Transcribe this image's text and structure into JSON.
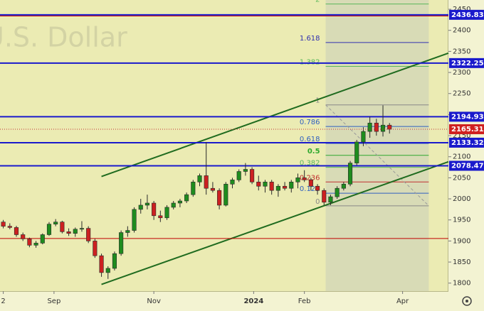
{
  "chart_data": {
    "type": "candlestick",
    "watermark": "U.S. Dollar",
    "x": [
      0,
      4,
      8,
      12,
      16,
      20,
      24,
      28,
      32,
      36,
      40,
      44,
      48,
      52,
      56,
      60,
      64,
      68,
      72,
      76,
      80,
      84,
      88,
      92,
      96,
      100,
      104,
      108,
      112,
      116,
      120,
      124,
      128,
      132,
      136,
      140,
      144,
      148,
      152,
      156,
      160,
      164,
      168,
      172,
      176,
      180,
      184,
      188,
      192,
      196,
      200,
      204,
      208,
      212,
      216,
      220,
      224,
      228,
      232,
      236
    ],
    "ohlc": [
      [
        1945,
        1950,
        1930,
        1935
      ],
      [
        1935,
        1942,
        1928,
        1932
      ],
      [
        1932,
        1936,
        1910,
        1915
      ],
      [
        1915,
        1920,
        1900,
        1905
      ],
      [
        1905,
        1908,
        1885,
        1890
      ],
      [
        1890,
        1900,
        1884,
        1895
      ],
      [
        1895,
        1918,
        1892,
        1915
      ],
      [
        1915,
        1945,
        1912,
        1940
      ],
      [
        1940,
        1952,
        1935,
        1945
      ],
      [
        1945,
        1948,
        1918,
        1922
      ],
      [
        1922,
        1930,
        1912,
        1918
      ],
      [
        1918,
        1932,
        1910,
        1928
      ],
      [
        1928,
        1947,
        1922,
        1930
      ],
      [
        1930,
        1935,
        1895,
        1900
      ],
      [
        1900,
        1905,
        1860,
        1865
      ],
      [
        1865,
        1870,
        1815,
        1825
      ],
      [
        1825,
        1840,
        1810,
        1835
      ],
      [
        1835,
        1875,
        1830,
        1870
      ],
      [
        1870,
        1925,
        1865,
        1920
      ],
      [
        1920,
        1935,
        1910,
        1925
      ],
      [
        1925,
        1980,
        1920,
        1975
      ],
      [
        1975,
        2000,
        1965,
        1985
      ],
      [
        1985,
        2010,
        1975,
        1990
      ],
      [
        1990,
        1995,
        1950,
        1960
      ],
      [
        1960,
        1972,
        1945,
        1955
      ],
      [
        1955,
        1985,
        1950,
        1980
      ],
      [
        1980,
        1995,
        1975,
        1990
      ],
      [
        1990,
        2000,
        1980,
        1995
      ],
      [
        1995,
        2015,
        1990,
        2010
      ],
      [
        2010,
        2045,
        2005,
        2040
      ],
      [
        2040,
        2060,
        2030,
        2055
      ],
      [
        2055,
        2135,
        2010,
        2025
      ],
      [
        2025,
        2040,
        2015,
        2020
      ],
      [
        2020,
        2025,
        1975,
        1985
      ],
      [
        1985,
        2040,
        1982,
        2035
      ],
      [
        2035,
        2050,
        2025,
        2045
      ],
      [
        2045,
        2070,
        2040,
        2065
      ],
      [
        2065,
        2085,
        2055,
        2070
      ],
      [
        2070,
        2075,
        2035,
        2040
      ],
      [
        2040,
        2055,
        2020,
        2030
      ],
      [
        2030,
        2045,
        2015,
        2040
      ],
      [
        2040,
        2045,
        2010,
        2020
      ],
      [
        2020,
        2035,
        2005,
        2030
      ],
      [
        2030,
        2040,
        2020,
        2025
      ],
      [
        2025,
        2045,
        2015,
        2040
      ],
      [
        2040,
        2060,
        2025,
        2050
      ],
      [
        2050,
        2068,
        2040,
        2045
      ],
      [
        2045,
        2050,
        2020,
        2030
      ],
      [
        2030,
        2035,
        2010,
        2020
      ],
      [
        2020,
        2025,
        1985,
        1992
      ],
      [
        1992,
        2010,
        1985,
        2005
      ],
      [
        2005,
        2030,
        2000,
        2025
      ],
      [
        2025,
        2040,
        2020,
        2035
      ],
      [
        2035,
        2090,
        2030,
        2085
      ],
      [
        2085,
        2140,
        2080,
        2135
      ],
      [
        2135,
        2170,
        2125,
        2160
      ],
      [
        2160,
        2195,
        2145,
        2180
      ],
      [
        2180,
        2190,
        2150,
        2160
      ],
      [
        2160,
        2222,
        2148,
        2175
      ],
      [
        2175,
        2180,
        2155,
        2165.31
      ]
    ],
    "up_color": "#1e8c1e",
    "down_color": "#cc2020",
    "xlim": [
      -2,
      272
    ],
    "xticks": [
      {
        "value": 0,
        "label": "2"
      },
      {
        "value": 31,
        "label": "Sep"
      },
      {
        "value": 92,
        "label": "Nov"
      },
      {
        "value": 153,
        "label": "2024"
      },
      {
        "value": 184,
        "label": "Feb"
      },
      {
        "value": 244,
        "label": "Apr"
      }
    ],
    "ylim": [
      1781,
      2472
    ],
    "yticks": [
      1800,
      1850,
      1900,
      1950,
      2000,
      2050,
      2100,
      2150,
      2200,
      2250,
      2300,
      2350,
      2400,
      2450
    ],
    "price_levels": [
      {
        "value": 2436.83,
        "color": "#1a1acc",
        "labeled": true
      },
      {
        "value": 2434,
        "color": "#c00000",
        "labeled": false
      },
      {
        "value": 2322.25,
        "color": "#1a1acc",
        "labeled": true
      },
      {
        "value": 2194.93,
        "color": "#1a1acc",
        "labeled": true
      },
      {
        "value": 2133.32,
        "color": "#1a1acc",
        "labeled": true
      },
      {
        "value": 2078.47,
        "color": "#1a1acc",
        "labeled": true
      },
      {
        "value": 1906,
        "color": "#c00000",
        "labeled": false
      }
    ],
    "trend_lines": [
      {
        "color": "#1f6b1f",
        "points": [
          [
            60,
            2053
          ],
          [
            272,
            2346
          ]
        ]
      },
      {
        "color": "#1f6b1f",
        "points": [
          [
            60,
            1797
          ],
          [
            272,
            2088
          ]
        ]
      }
    ],
    "fib": {
      "low": 1983.5,
      "high": 2223,
      "x0": 197,
      "x1": 260,
      "levels": [
        {
          "value": 2,
          "color": "#5ab85a"
        },
        {
          "value": 1.618,
          "color": "#3030b0"
        },
        {
          "value": 1.382,
          "color": "#5ab85a"
        },
        {
          "value": 1,
          "color": "#888888"
        },
        {
          "value": 0.786,
          "color": "#3060c0"
        },
        {
          "value": 0.618,
          "color": "#3060c0"
        },
        {
          "value": 0.5,
          "color": "#2ea82e"
        },
        {
          "value": 0.382,
          "color": "#5ab85a"
        },
        {
          "value": 0.236,
          "color": "#c03030"
        },
        {
          "value": 0.125,
          "color": "#3060c0"
        },
        {
          "value": 0,
          "color": "#888888"
        }
      ]
    }
  }
}
